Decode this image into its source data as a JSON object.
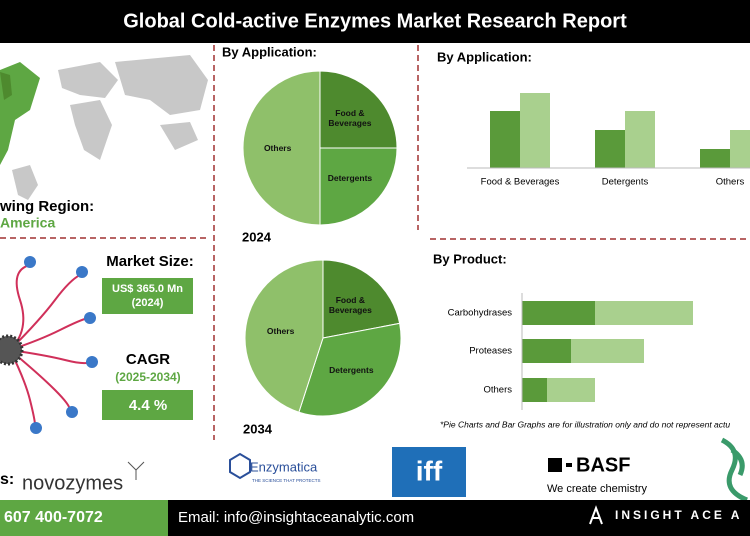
{
  "header": {
    "title": "Global Cold-active Enzymes Market Research Report"
  },
  "region": {
    "label": "wing Region:",
    "value": "America"
  },
  "market": {
    "size_label": "Market Size:",
    "size_value": "US$ 365.0 Mn (2024)",
    "cagr_label": "CAGR",
    "cagr_period": "(2025-2034)",
    "cagr_value": "4.4 %"
  },
  "chart_data": [
    {
      "type": "pie",
      "title": "By Application:",
      "year": "2024",
      "categories": [
        "Food & Beverages",
        "Detergents",
        "Others"
      ],
      "values": [
        25,
        25,
        50
      ],
      "colors": [
        "#4e8a2e",
        "#5ea743",
        "#8fc06a"
      ]
    },
    {
      "type": "pie",
      "year": "2034",
      "categories": [
        "Food & Beverages",
        "Detergents",
        "Others"
      ],
      "values": [
        22,
        33,
        45
      ],
      "colors": [
        "#4e8a2e",
        "#5ea743",
        "#8fc06a"
      ]
    },
    {
      "type": "bar",
      "title": "By Application:",
      "categories": [
        "Food & Beverages",
        "Detergents",
        "Others"
      ],
      "series": [
        {
          "color": "#5a9a3a",
          "values": [
            57,
            38,
            19
          ]
        },
        {
          "color": "#a9d08e",
          "values": [
            75,
            57,
            38
          ]
        }
      ],
      "ylim": [
        0,
        80
      ]
    },
    {
      "type": "hbar",
      "title": "By Product:",
      "categories": [
        "Carbohydrases",
        "Proteases",
        "Others"
      ],
      "series": [
        {
          "color": "#5a9a3a",
          "values": [
            73,
            49,
            25
          ]
        },
        {
          "color": "#a9d08e",
          "values": [
            98,
            73,
            48
          ]
        }
      ],
      "xlim": [
        0,
        228
      ],
      "note": "*Pie Charts and Bar Graphs are for illustration only and do not represent actu"
    }
  ],
  "logos": {
    "prefix": "s:",
    "items": [
      "novozymes",
      "Enzymatica",
      "THE SCIENCE THAT PROTECTS",
      "iff",
      "BASF",
      "We create chemistry"
    ]
  },
  "footer": {
    "phone": "607 400-7072",
    "email": "Email: info@insightaceanalytic.com",
    "brand": "INSIGHT ACE A"
  }
}
